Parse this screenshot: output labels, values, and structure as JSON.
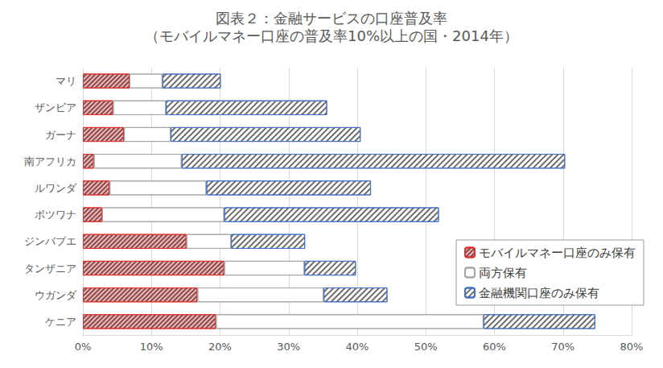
{
  "chart_data": {
    "type": "bar",
    "title": "図表２：金融サービスの口座普及率",
    "subtitle": "（モバイルマネー口座の普及率10%以上の国・2014年）",
    "orientation": "horizontal",
    "stacked": true,
    "grid": true,
    "legend": "lower right",
    "categories": [
      "マリ",
      "ザンビア",
      "ガーナ",
      "南アフリカ",
      "ルワンダ",
      "ボツワナ",
      "ジンバブエ",
      "タンザニア",
      "ウガンダ",
      "ケニア"
    ],
    "series": [
      {
        "name": "モバイルマネー口座のみ保有",
        "color": "#e03030",
        "values": [
          6.8,
          4.4,
          6.0,
          1.6,
          3.9,
          2.8,
          15.1,
          20.6,
          16.7,
          19.4
        ]
      },
      {
        "name": "両方保有",
        "color": "#a6a6a6",
        "values": [
          4.8,
          7.7,
          6.8,
          12.8,
          14.1,
          17.8,
          6.5,
          11.7,
          18.4,
          39.0
        ]
      },
      {
        "name": "金融機関口座のみ保有",
        "color": "#4472c4",
        "values": [
          8.5,
          23.5,
          27.7,
          55.9,
          24.0,
          31.3,
          10.8,
          7.5,
          9.3,
          16.3
        ]
      }
    ],
    "xlim": [
      0,
      80
    ],
    "xticks": [
      {
        "value": 0,
        "label": "0%"
      },
      {
        "value": 10,
        "label": "10%"
      },
      {
        "value": 20,
        "label": "20%"
      },
      {
        "value": 30,
        "label": "30%"
      },
      {
        "value": 40,
        "label": "40%"
      },
      {
        "value": 50,
        "label": "50%"
      },
      {
        "value": 60,
        "label": "60%"
      },
      {
        "value": 70,
        "label": "70%"
      },
      {
        "value": 80,
        "label": "80%"
      }
    ]
  }
}
